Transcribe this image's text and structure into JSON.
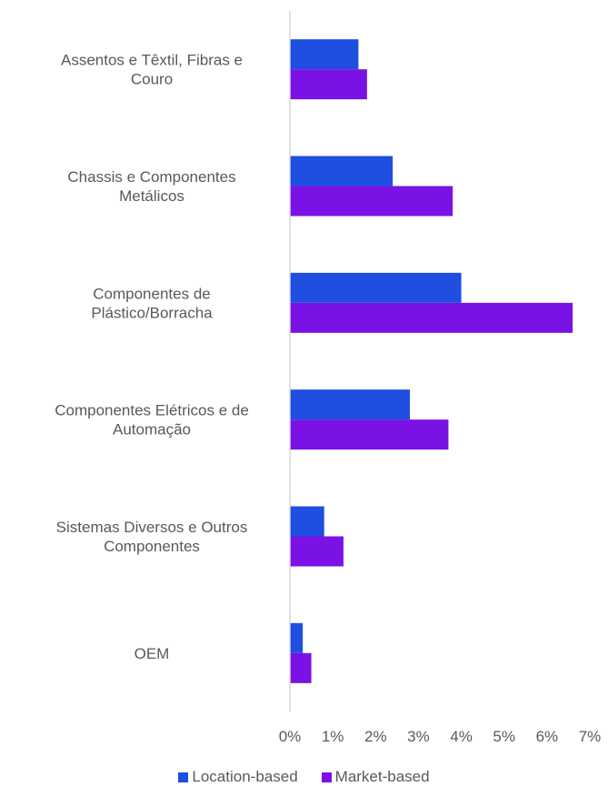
{
  "chart_data": {
    "type": "bar",
    "orientation": "horizontal",
    "categories": [
      "Assentos e Têxtil, Fibras e Couro",
      "Chassis e Componentes Metálicos",
      "Componentes de Plástico/Borracha",
      "Componentes Elétricos e de Automação",
      "Sistemas Diversos e Outros Componentes",
      "OEM"
    ],
    "category_label_lines": [
      [
        "Assentos e Têxtil, Fibras e",
        "Couro"
      ],
      [
        "Chassis e Componentes",
        "Metálicos"
      ],
      [
        "Componentes de",
        "Plástico/Borracha"
      ],
      [
        "Componentes Elétricos e de",
        "Automação"
      ],
      [
        "Sistemas Diversos e Outros",
        "Componentes"
      ],
      [
        "OEM"
      ]
    ],
    "series": [
      {
        "name": "Location-based",
        "color": "#1f4fe0",
        "values": [
          1.6,
          2.4,
          4.0,
          2.8,
          0.8,
          0.3
        ]
      },
      {
        "name": "Market-based",
        "color": "#7a12e6",
        "values": [
          1.8,
          3.8,
          6.6,
          3.7,
          1.25,
          0.5
        ]
      }
    ],
    "xlim": [
      0,
      7
    ],
    "xticks": [
      0,
      1,
      2,
      3,
      4,
      5,
      6,
      7
    ],
    "xtick_labels": [
      "0%",
      "1%",
      "2%",
      "3%",
      "4%",
      "5%",
      "6%",
      "7%"
    ],
    "title": "",
    "xlabel": "",
    "ylabel": "",
    "grid": false,
    "legend_position": "bottom"
  }
}
